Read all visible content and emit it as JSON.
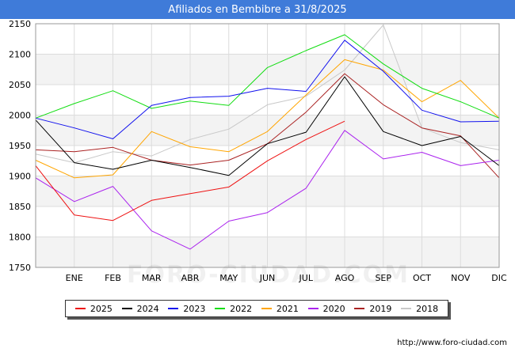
{
  "title": "Afiliados en Bembibre a 31/8/2025",
  "source": "http://www.foro-ciudad.com",
  "watermark": "FORO-CIUDAD.COM",
  "chart_data": {
    "type": "line",
    "categories": [
      "",
      "ENE",
      "FEB",
      "MAR",
      "ABR",
      "MAY",
      "JUN",
      "JUL",
      "AGO",
      "SEP",
      "OCT",
      "NOV",
      "DIC"
    ],
    "ylim": [
      1750,
      2150
    ],
    "yticks": [
      1750,
      1800,
      1850,
      1900,
      1950,
      2000,
      2050,
      2100,
      2150
    ],
    "grid": true,
    "legend_position": "bottom",
    "series": [
      {
        "name": "2025",
        "color": "#ee1111",
        "values": [
          1917,
          1836,
          1827,
          1860,
          1871,
          1882,
          1925,
          1960,
          1990,
          null,
          null,
          null,
          null
        ]
      },
      {
        "name": "2024",
        "color": "#000000",
        "values": [
          1992,
          1922,
          1911,
          1926,
          1914,
          1901,
          1953,
          1972,
          2063,
          1973,
          1950,
          1965,
          1917
        ]
      },
      {
        "name": "2023",
        "color": "#1111ee",
        "values": [
          1995,
          1979,
          1961,
          2016,
          2029,
          2031,
          2044,
          2039,
          2123,
          2072,
          2008,
          1989,
          1990
        ]
      },
      {
        "name": "2022",
        "color": "#11dd11",
        "values": [
          1995,
          2019,
          2040,
          2011,
          2023,
          2016,
          2078,
          2106,
          2132,
          2084,
          2044,
          2022,
          1995
        ]
      },
      {
        "name": "2021",
        "color": "#ffa500",
        "values": [
          1926,
          1897,
          1902,
          1973,
          1948,
          1940,
          1973,
          2033,
          2091,
          2074,
          2022,
          2057,
          1995
        ]
      },
      {
        "name": "2020",
        "color": "#aa22ee",
        "values": [
          1897,
          1858,
          1883,
          1810,
          1780,
          1826,
          1840,
          1880,
          1975,
          1928,
          1939,
          1917,
          1926
        ]
      },
      {
        "name": "2019",
        "color": "#aa2222",
        "values": [
          1943,
          1940,
          1947,
          1926,
          1918,
          1926,
          1953,
          2005,
          2068,
          2017,
          1979,
          1966,
          1897
        ]
      },
      {
        "name": "2018",
        "color": "#c8c8c8",
        "values": [
          1936,
          1922,
          1940,
          1933,
          1960,
          1977,
          2017,
          2031,
          2074,
          2148,
          1979,
          1955,
          1943
        ]
      }
    ]
  }
}
